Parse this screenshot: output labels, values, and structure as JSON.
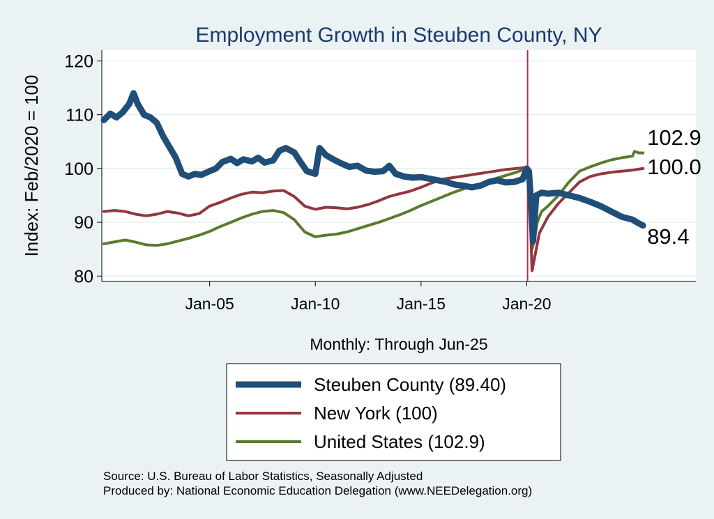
{
  "chart_data": {
    "type": "line",
    "title": "Employment Growth in Steuben  County, NY",
    "xlabel": "Monthly: Through Jun-25",
    "ylabel": "Index: Feb/2020 = 100",
    "ylim": [
      79,
      122
    ],
    "yticks": [
      "80",
      "90",
      "100",
      "110",
      "120"
    ],
    "ytick_values": [
      80,
      90,
      100,
      110,
      120
    ],
    "xticks": [
      "Jan-05",
      "Jan-10",
      "Jan-15",
      "Jan-20"
    ],
    "xtick_values": [
      2005,
      2010,
      2015,
      2020
    ],
    "xlim": [
      1999.9,
      2028.0
    ],
    "grid": true,
    "reference_line": {
      "x": 2020.04,
      "color": "#b3285a"
    },
    "series": [
      {
        "name": "United States",
        "legend_label": "United States (102.9)",
        "color": "#5a7a2e",
        "width": 4,
        "end_label": "102.9",
        "points": [
          [
            2000.0,
            86.0
          ],
          [
            2001.0,
            86.7
          ],
          [
            2001.5,
            86.3
          ],
          [
            2002.0,
            85.8
          ],
          [
            2002.5,
            85.7
          ],
          [
            2003.0,
            86.0
          ],
          [
            2003.5,
            86.5
          ],
          [
            2004.0,
            87.0
          ],
          [
            2004.5,
            87.6
          ],
          [
            2005.0,
            88.3
          ],
          [
            2005.5,
            89.2
          ],
          [
            2006.0,
            90.0
          ],
          [
            2006.5,
            90.8
          ],
          [
            2007.0,
            91.5
          ],
          [
            2007.5,
            92.0
          ],
          [
            2008.0,
            92.2
          ],
          [
            2008.5,
            91.8
          ],
          [
            2009.0,
            90.5
          ],
          [
            2009.5,
            88.2
          ],
          [
            2010.0,
            87.3
          ],
          [
            2010.5,
            87.6
          ],
          [
            2011.0,
            87.8
          ],
          [
            2011.5,
            88.2
          ],
          [
            2012.0,
            88.8
          ],
          [
            2012.5,
            89.4
          ],
          [
            2013.0,
            90.0
          ],
          [
            2013.5,
            90.7
          ],
          [
            2014.0,
            91.4
          ],
          [
            2014.5,
            92.2
          ],
          [
            2015.0,
            93.1
          ],
          [
            2015.5,
            93.9
          ],
          [
            2016.0,
            94.7
          ],
          [
            2016.5,
            95.5
          ],
          [
            2017.0,
            96.2
          ],
          [
            2017.5,
            96.8
          ],
          [
            2018.0,
            97.4
          ],
          [
            2018.5,
            98.1
          ],
          [
            2019.0,
            98.7
          ],
          [
            2019.5,
            99.3
          ],
          [
            2020.0,
            100.0
          ],
          [
            2020.1,
            99.9
          ],
          [
            2020.2,
            98.0
          ],
          [
            2020.25,
            85.0
          ],
          [
            2020.35,
            86.5
          ],
          [
            2020.5,
            90.0
          ],
          [
            2020.7,
            92.0
          ],
          [
            2021.0,
            93.0
          ],
          [
            2021.5,
            95.0
          ],
          [
            2022.0,
            97.5
          ],
          [
            2022.5,
            99.5
          ],
          [
            2023.0,
            100.3
          ],
          [
            2023.5,
            101.0
          ],
          [
            2024.0,
            101.6
          ],
          [
            2024.5,
            102.0
          ],
          [
            2025.0,
            102.3
          ],
          [
            2025.1,
            103.2
          ],
          [
            2025.3,
            102.9
          ],
          [
            2025.5,
            102.9
          ]
        ]
      },
      {
        "name": "New York",
        "legend_label": "New York (100)",
        "color": "#94363f",
        "width": 4,
        "end_label": "100.0",
        "points": [
          [
            2000.0,
            92.0
          ],
          [
            2000.5,
            92.2
          ],
          [
            2001.0,
            92.0
          ],
          [
            2001.5,
            91.5
          ],
          [
            2002.0,
            91.2
          ],
          [
            2002.5,
            91.5
          ],
          [
            2003.0,
            92.0
          ],
          [
            2003.5,
            91.7
          ],
          [
            2004.0,
            91.2
          ],
          [
            2004.5,
            91.6
          ],
          [
            2005.0,
            93.0
          ],
          [
            2005.5,
            93.7
          ],
          [
            2006.0,
            94.5
          ],
          [
            2006.5,
            95.2
          ],
          [
            2007.0,
            95.6
          ],
          [
            2007.5,
            95.5
          ],
          [
            2008.0,
            95.8
          ],
          [
            2008.5,
            95.9
          ],
          [
            2009.0,
            94.8
          ],
          [
            2009.5,
            93.0
          ],
          [
            2010.0,
            92.4
          ],
          [
            2010.5,
            92.8
          ],
          [
            2011.0,
            92.7
          ],
          [
            2011.5,
            92.5
          ],
          [
            2012.0,
            92.8
          ],
          [
            2012.5,
            93.3
          ],
          [
            2013.0,
            94.0
          ],
          [
            2013.5,
            94.8
          ],
          [
            2014.0,
            95.3
          ],
          [
            2014.5,
            95.8
          ],
          [
            2015.0,
            96.5
          ],
          [
            2015.5,
            97.3
          ],
          [
            2016.0,
            98.0
          ],
          [
            2016.5,
            98.3
          ],
          [
            2017.0,
            98.6
          ],
          [
            2017.5,
            98.9
          ],
          [
            2018.0,
            99.2
          ],
          [
            2018.5,
            99.5
          ],
          [
            2019.0,
            99.8
          ],
          [
            2019.5,
            100.0
          ],
          [
            2020.0,
            100.2
          ],
          [
            2020.1,
            99.8
          ],
          [
            2020.25,
            81.0
          ],
          [
            2020.4,
            84.0
          ],
          [
            2020.6,
            88.0
          ],
          [
            2021.0,
            91.0
          ],
          [
            2021.5,
            93.5
          ],
          [
            2022.0,
            95.5
          ],
          [
            2022.5,
            97.5
          ],
          [
            2023.0,
            98.5
          ],
          [
            2023.5,
            99.0
          ],
          [
            2024.0,
            99.3
          ],
          [
            2024.5,
            99.5
          ],
          [
            2025.0,
            99.7
          ],
          [
            2025.5,
            100.0
          ]
        ]
      },
      {
        "name": "Steuben  County",
        "legend_label": "Steuben  County (89.40)",
        "color": "#1f4e79",
        "width": 9,
        "end_label": "89.4",
        "points": [
          [
            2000.0,
            109.0
          ],
          [
            2000.3,
            110.2
          ],
          [
            2000.6,
            109.5
          ],
          [
            2000.9,
            110.5
          ],
          [
            2001.2,
            112.0
          ],
          [
            2001.4,
            114.0
          ],
          [
            2001.6,
            112.0
          ],
          [
            2001.9,
            110.0
          ],
          [
            2002.2,
            109.5
          ],
          [
            2002.5,
            108.5
          ],
          [
            2002.8,
            106.0
          ],
          [
            2003.1,
            104.0
          ],
          [
            2003.4,
            102.0
          ],
          [
            2003.7,
            99.0
          ],
          [
            2004.0,
            98.5
          ],
          [
            2004.3,
            99.0
          ],
          [
            2004.6,
            98.8
          ],
          [
            2005.0,
            99.5
          ],
          [
            2005.3,
            100.0
          ],
          [
            2005.6,
            101.2
          ],
          [
            2006.0,
            101.8
          ],
          [
            2006.3,
            101.0
          ],
          [
            2006.6,
            101.7
          ],
          [
            2007.0,
            101.3
          ],
          [
            2007.3,
            102.0
          ],
          [
            2007.6,
            101.1
          ],
          [
            2008.0,
            101.5
          ],
          [
            2008.3,
            103.3
          ],
          [
            2008.6,
            103.8
          ],
          [
            2009.0,
            103.0
          ],
          [
            2009.3,
            101.2
          ],
          [
            2009.6,
            99.5
          ],
          [
            2010.0,
            99.0
          ],
          [
            2010.2,
            103.8
          ],
          [
            2010.5,
            102.5
          ],
          [
            2010.8,
            101.8
          ],
          [
            2011.2,
            101.0
          ],
          [
            2011.6,
            100.3
          ],
          [
            2012.0,
            100.5
          ],
          [
            2012.4,
            99.6
          ],
          [
            2012.8,
            99.4
          ],
          [
            2013.2,
            99.5
          ],
          [
            2013.5,
            100.5
          ],
          [
            2013.8,
            99.0
          ],
          [
            2014.2,
            98.5
          ],
          [
            2014.6,
            98.3
          ],
          [
            2015.0,
            98.4
          ],
          [
            2015.4,
            98.1
          ],
          [
            2015.8,
            97.8
          ],
          [
            2016.2,
            97.5
          ],
          [
            2016.6,
            97.0
          ],
          [
            2017.0,
            96.8
          ],
          [
            2017.4,
            96.5
          ],
          [
            2017.8,
            96.8
          ],
          [
            2018.2,
            97.5
          ],
          [
            2018.6,
            97.8
          ],
          [
            2019.0,
            97.4
          ],
          [
            2019.4,
            97.5
          ],
          [
            2019.8,
            98.0
          ],
          [
            2020.0,
            100.0
          ],
          [
            2020.1,
            99.5
          ],
          [
            2020.2,
            94.0
          ],
          [
            2020.3,
            86.5
          ],
          [
            2020.45,
            95.0
          ],
          [
            2020.7,
            95.5
          ],
          [
            2021.0,
            95.3
          ],
          [
            2021.5,
            95.5
          ],
          [
            2022.0,
            95.0
          ],
          [
            2022.5,
            94.5
          ],
          [
            2023.0,
            93.8
          ],
          [
            2023.5,
            93.0
          ],
          [
            2024.0,
            92.0
          ],
          [
            2024.5,
            91.0
          ],
          [
            2025.0,
            90.5
          ],
          [
            2025.3,
            89.8
          ],
          [
            2025.5,
            89.4
          ]
        ]
      }
    ]
  },
  "source_text": "Source: U.S. Bureau of Labor Statistics, Seasonally Adjusted",
  "produced_text": "Produced by: National Economic Education Delegation (www.NEEDelegation.org)"
}
